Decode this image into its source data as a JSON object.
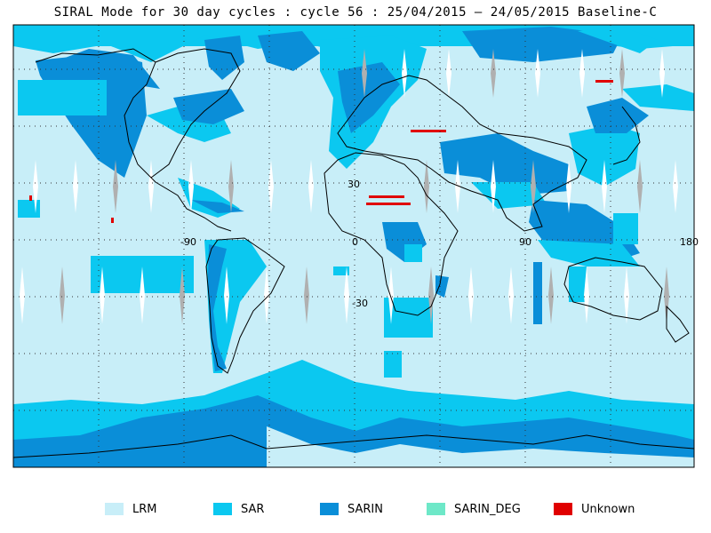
{
  "title": "SIRAL Mode for 30 day cycles : cycle 56 : 25/04/2015 – 24/05/2015 Baseline-C",
  "map": {
    "longitude_labels": [
      "-90",
      "0",
      "90",
      "180"
    ],
    "latitude_labels": [
      "30",
      "-30"
    ],
    "colors": {
      "LRM": "#c8eef8",
      "SAR": "#0bc8f0",
      "SARIN": "#0a8ed8",
      "SARIN_DEG": "#6ee8c8",
      "Unknown": "#e00000",
      "gap": "#ffffff",
      "track": "#b0b0b0",
      "coast": "#000000"
    }
  },
  "legend": [
    {
      "label": "LRM",
      "color": "#c8eef8"
    },
    {
      "label": "SAR",
      "color": "#0bc8f0"
    },
    {
      "label": "SARIN",
      "color": "#0a8ed8"
    },
    {
      "label": "SARIN_DEG",
      "color": "#6ee8c8"
    },
    {
      "label": "Unknown",
      "color": "#e00000"
    }
  ]
}
